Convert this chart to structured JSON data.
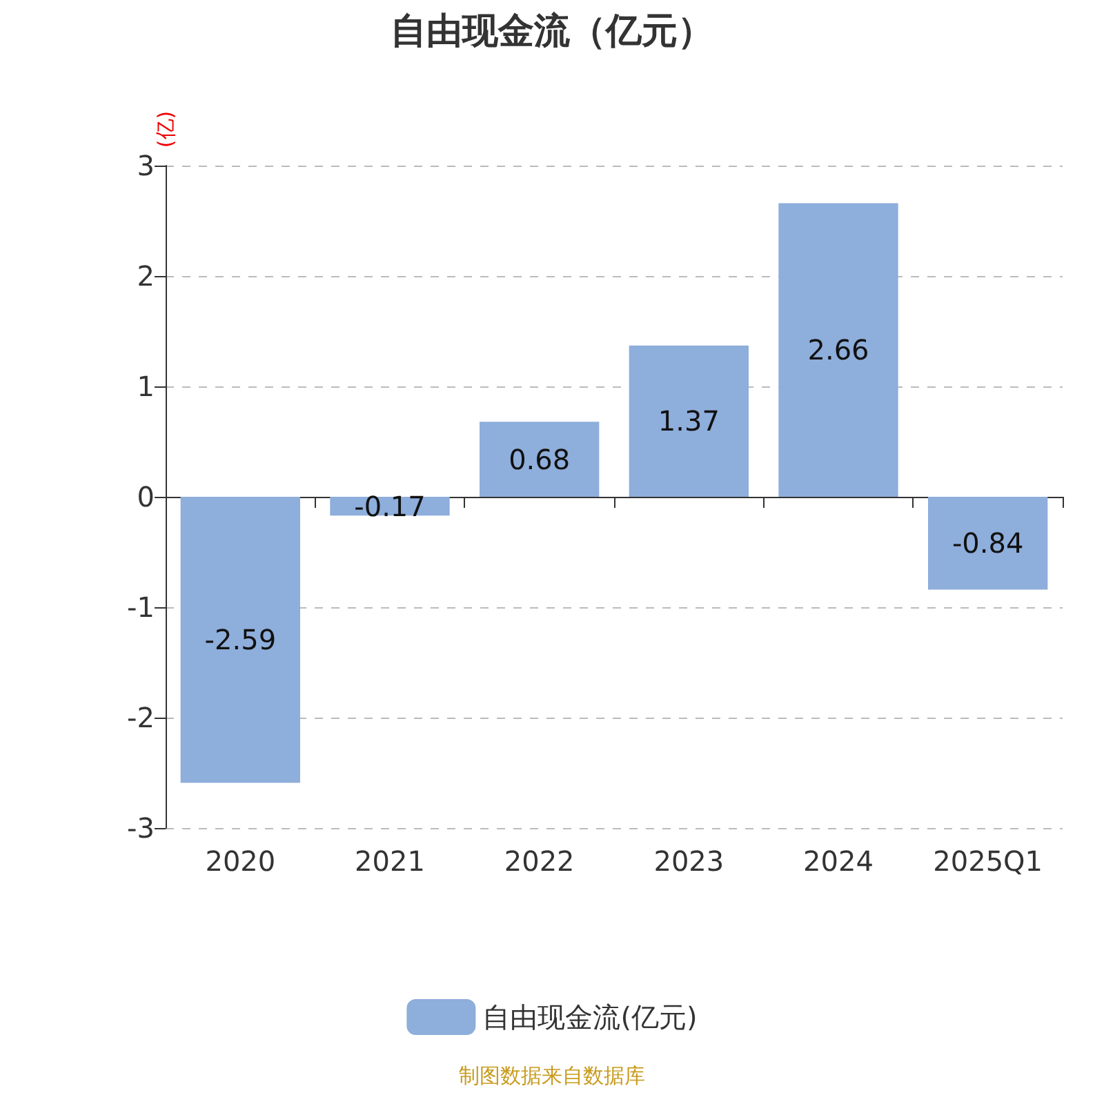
{
  "chart_data": {
    "type": "bar",
    "title": "自由现金流（亿元）",
    "ylabel": "(亿)",
    "categories": [
      "2020",
      "2021",
      "2022",
      "2023",
      "2024",
      "2025Q1"
    ],
    "series": [
      {
        "name": "自由现金流(亿元)",
        "color": "#8eaedb",
        "values": [
          -2.59,
          -0.17,
          0.68,
          1.37,
          2.66,
          -0.84
        ]
      }
    ],
    "ylim": [
      -3,
      3
    ],
    "yticks": [
      -3,
      -2,
      -1,
      0,
      1,
      2,
      3
    ],
    "grid": "y",
    "legend": "bottom",
    "data_labels": true,
    "annotations": [
      "制图数据来自数据库"
    ]
  }
}
